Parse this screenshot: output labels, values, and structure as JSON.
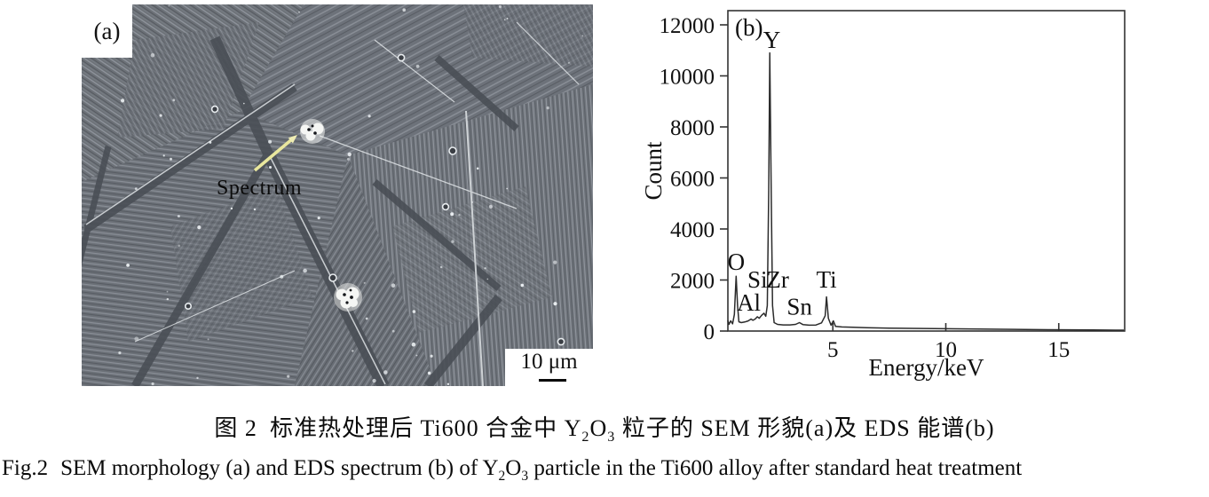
{
  "figure": {
    "sem": {
      "panel_label": "(a)",
      "spectrum_label": "Spectrum",
      "scale_bar_text": "10 μm",
      "arrow_color": "#e9e79e"
    },
    "caption_cn": {
      "fig_no": "图 2",
      "pre": "标准热处理后 Ti600 合金中 Y",
      "sub1": "2",
      "mid": "O",
      "sub2": "3",
      "post": " 粒子的 SEM 形貌(a)及 EDS 能谱(b)"
    },
    "caption_en": {
      "fig_no": "Fig.2",
      "pre": "SEM morphology (a) and EDS spectrum (b) of Y",
      "sub1": "2",
      "mid": "O",
      "sub2": "3",
      "post": " particle in the Ti600 alloy after standard heat treatment"
    }
  },
  "chart_data": {
    "type": "line",
    "panel_label": "(b)",
    "title": "",
    "xlabel": "Energy/keV",
    "ylabel": "Count",
    "xlim": [
      0.35,
      17.9
    ],
    "ylim": [
      0,
      12000
    ],
    "xticks": [
      5,
      10,
      15
    ],
    "yticks": [
      0,
      2000,
      4000,
      6000,
      8000,
      10000,
      12000
    ],
    "grid": false,
    "legend": "none",
    "line_color": "#2b2b2b",
    "peak_labels": [
      {
        "label": "O",
        "x": 0.72,
        "y": 2400
      },
      {
        "label": "Al",
        "x": 1.28,
        "y": 800
      },
      {
        "label": "Si",
        "x": 1.66,
        "y": 1700
      },
      {
        "label": "Zr",
        "x": 2.56,
        "y": 1700
      },
      {
        "label": "Y",
        "x": 2.3,
        "y": 11100
      },
      {
        "label": "Sn",
        "x": 3.52,
        "y": 650
      },
      {
        "label": "Ti",
        "x": 4.72,
        "y": 1700
      }
    ],
    "series": [
      {
        "name": "EDS spectrum of Y2O3 particle",
        "points": [
          [
            0.35,
            420
          ],
          [
            0.4,
            260
          ],
          [
            0.48,
            400
          ],
          [
            0.56,
            280
          ],
          [
            0.64,
            650
          ],
          [
            0.72,
            2150
          ],
          [
            0.78,
            1000
          ],
          [
            0.84,
            360
          ],
          [
            0.95,
            330
          ],
          [
            1.1,
            355
          ],
          [
            1.25,
            395
          ],
          [
            1.38,
            470
          ],
          [
            1.46,
            420
          ],
          [
            1.56,
            470
          ],
          [
            1.66,
            560
          ],
          [
            1.74,
            500
          ],
          [
            1.85,
            620
          ],
          [
            1.95,
            700
          ],
          [
            2.03,
            580
          ],
          [
            2.1,
            1000
          ],
          [
            2.16,
            5500
          ],
          [
            2.21,
            10900
          ],
          [
            2.27,
            5500
          ],
          [
            2.33,
            1000
          ],
          [
            2.4,
            330
          ],
          [
            2.55,
            260
          ],
          [
            2.8,
            240
          ],
          [
            3.1,
            240
          ],
          [
            3.35,
            260
          ],
          [
            3.52,
            330
          ],
          [
            3.68,
            250
          ],
          [
            3.95,
            230
          ],
          [
            4.25,
            235
          ],
          [
            4.5,
            320
          ],
          [
            4.66,
            600
          ],
          [
            4.72,
            1340
          ],
          [
            4.8,
            500
          ],
          [
            4.92,
            230
          ],
          [
            5.02,
            400
          ],
          [
            5.12,
            180
          ],
          [
            5.4,
            160
          ],
          [
            5.9,
            145
          ],
          [
            6.5,
            130
          ],
          [
            7.5,
            115
          ],
          [
            8.5,
            105
          ],
          [
            9.5,
            95
          ],
          [
            10.5,
            86
          ],
          [
            11.5,
            77
          ],
          [
            12.5,
            68
          ],
          [
            13.5,
            60
          ],
          [
            14.5,
            53
          ],
          [
            15.5,
            47
          ],
          [
            16.5,
            41
          ],
          [
            17.5,
            36
          ],
          [
            17.88,
            34
          ]
        ]
      }
    ]
  }
}
